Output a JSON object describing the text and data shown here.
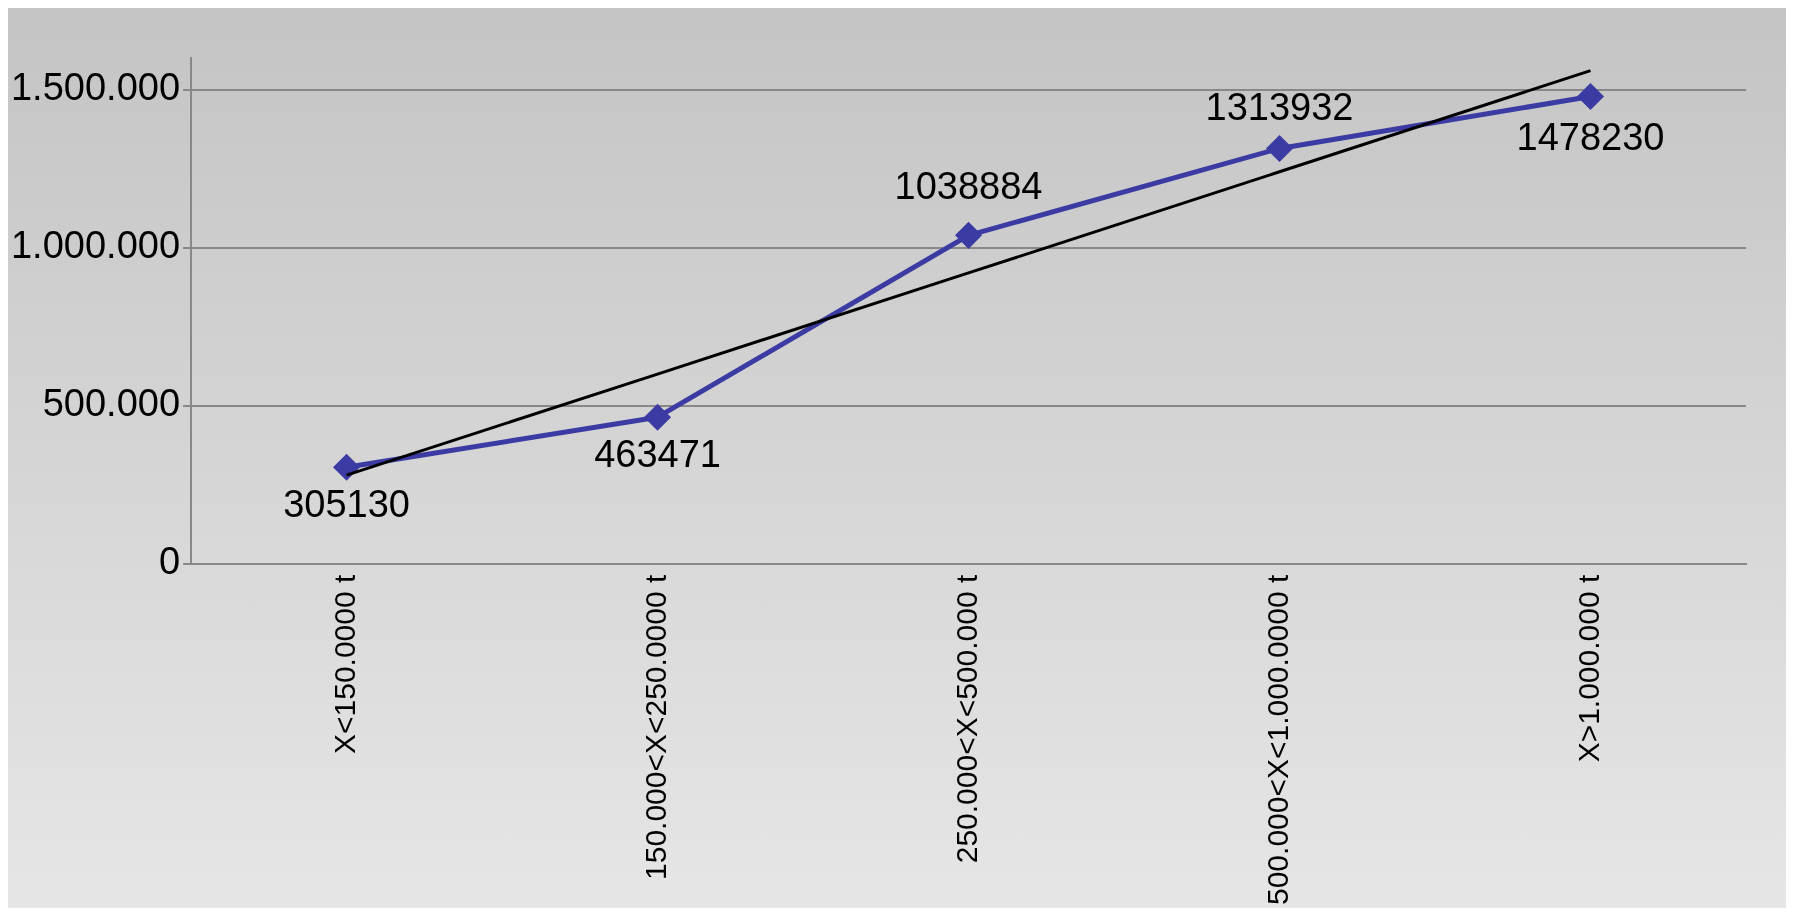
{
  "chart_data": {
    "type": "line",
    "categories": [
      "X<150.0000 t",
      "150.000<X<250.0000 t",
      "250.000<X<500.000 t",
      "500.000<X<1.000.0000 t",
      "X>1.000.000 t"
    ],
    "series": [
      {
        "color": "#3b3ba3",
        "marker": "diamond",
        "values": [
          305130,
          463471,
          1038884,
          1313932,
          1478230
        ],
        "value_labels": [
          "305130",
          "463471",
          "1038884",
          "1313932",
          "1478230"
        ]
      },
      {
        "color": "#000000",
        "marker": "none",
        "values": [
          280000,
          600000,
          920000,
          1240000,
          1560000
        ]
      }
    ],
    "ylim": [
      0,
      1600000
    ],
    "yticks": [
      {
        "value": 0,
        "label": "0"
      },
      {
        "value": 500000,
        "label": "500.000"
      },
      {
        "value": 1000000,
        "label": "1.000.000"
      },
      {
        "value": 1500000,
        "label": "1.500.000"
      }
    ],
    "grid": "y",
    "legend": false
  }
}
